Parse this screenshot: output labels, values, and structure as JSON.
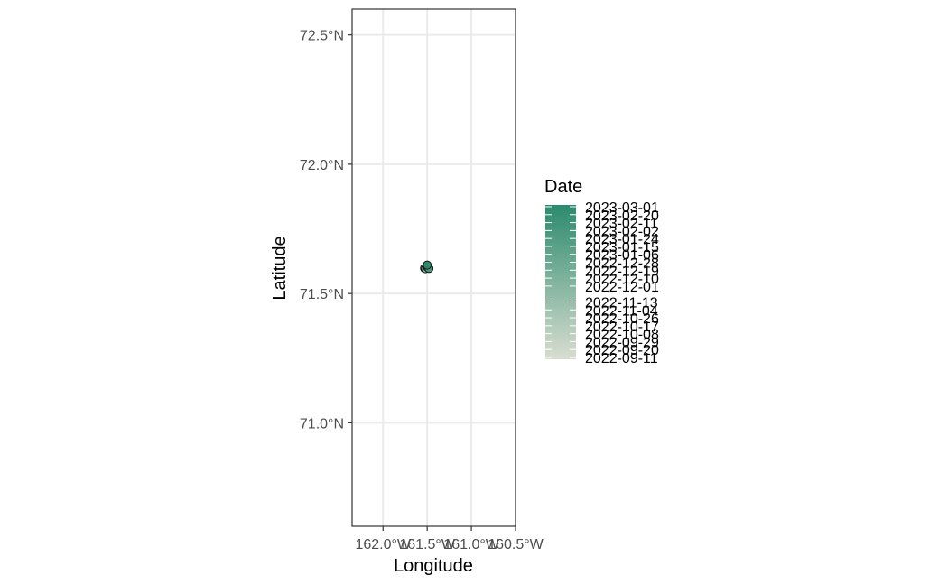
{
  "chart_data": {
    "type": "scatter",
    "xlabel": "Longitude",
    "ylabel": "Latitude",
    "xlim": [
      -162.35,
      -160.5
    ],
    "ylim": [
      70.6,
      72.6
    ],
    "x_ticks": [
      {
        "value": -162.0,
        "label": "162.0°W"
      },
      {
        "value": -161.5,
        "label": "161.5°W"
      },
      {
        "value": -161.0,
        "label": "161.0°W"
      },
      {
        "value": -160.5,
        "label": "160.5°W"
      }
    ],
    "y_ticks": [
      {
        "value": 71.0,
        "label": "71.0°N"
      },
      {
        "value": 71.5,
        "label": "71.5°N"
      },
      {
        "value": 72.0,
        "label": "72.0°N"
      },
      {
        "value": 72.5,
        "label": "72.5°N"
      }
    ],
    "grid": true,
    "points": [
      {
        "lon": -161.53,
        "lat": 71.598
      },
      {
        "lon": -161.51,
        "lat": 71.601
      },
      {
        "lon": -161.49,
        "lat": 71.599
      },
      {
        "lon": -161.52,
        "lat": 71.596
      },
      {
        "lon": -161.5,
        "lat": 71.603
      },
      {
        "lon": -161.48,
        "lat": 71.597
      },
      {
        "lon": -161.5,
        "lat": 71.61
      }
    ],
    "legend": {
      "title": "Date",
      "position": "right",
      "colors": {
        "low": "#d9ddd0",
        "high": "#2b8a6e"
      },
      "labels": [
        "2023-03-01",
        "2023-02-20",
        "2023-02-11",
        "2023-02-02",
        "2023-01-24",
        "2023-01-15",
        "2023-01-06",
        "2022-12-28",
        "2022-12-19",
        "2022-12-10",
        "2022-12-01",
        "2022-11-13",
        "2022-11-04",
        "2022-10-26",
        "2022-10-17",
        "2022-10-08",
        "2022-09-29",
        "2022-09-20",
        "2022-09-11"
      ]
    }
  }
}
